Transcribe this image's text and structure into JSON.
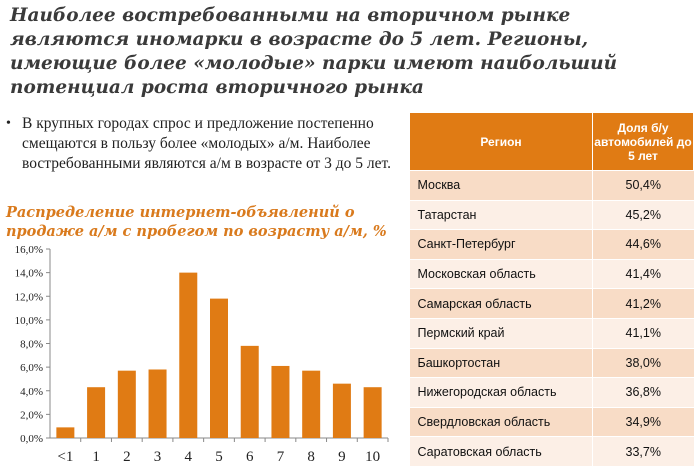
{
  "headline": "Наиболее востребованными на вторичном рынке являются иномарки в возрасте до 5 лет. Регионы, имеющие более «молодые» парки имеют наибольший потенциал роста вторичного рынка",
  "bullet": {
    "text": "В крупных городах спрос и предложение постепенно смещаются в пользу более «молодых» а/м. Наиболее востребованными являются а/м в возрасте от 3 до 5 лет."
  },
  "colors": {
    "accent": "#e07b14",
    "row_odd": "#f8dcc6",
    "row_even": "#fcefe6"
  },
  "table": {
    "headers": [
      "Регион",
      "Доля б/у автомобилей до 5 лет"
    ],
    "rows": [
      [
        "Москва",
        "50,4%"
      ],
      [
        "Татарстан",
        "45,2%"
      ],
      [
        "Санкт-Петербург",
        "44,6%"
      ],
      [
        "Московская область",
        "41,4%"
      ],
      [
        "Самарская область",
        "41,2%"
      ],
      [
        "Пермский край",
        "41,1%"
      ],
      [
        "Башкортостан",
        "38,0%"
      ],
      [
        "Нижегородская область",
        "36,8%"
      ],
      [
        "Свердловская область",
        "34,9%"
      ],
      [
        "Саратовская область",
        "33,7%"
      ]
    ]
  },
  "chart_data": {
    "type": "bar",
    "title": "Распределение интернет-объявлений о продаже а/м с пробегом по возрасту а/м, %",
    "categories": [
      "<1",
      "1",
      "2",
      "3",
      "4",
      "5",
      "6",
      "7",
      "8",
      "9",
      "10"
    ],
    "values": [
      0.9,
      4.3,
      5.7,
      5.8,
      14.0,
      11.8,
      7.8,
      6.1,
      5.7,
      4.6,
      4.3
    ],
    "ylim": [
      0,
      16
    ],
    "yticks": [
      "0,0%",
      "2,0%",
      "4,0%",
      "6,0%",
      "8,0%",
      "10,0%",
      "12,0%",
      "14,0%",
      "16,0%"
    ],
    "color": "#e07b14",
    "grid": false
  }
}
